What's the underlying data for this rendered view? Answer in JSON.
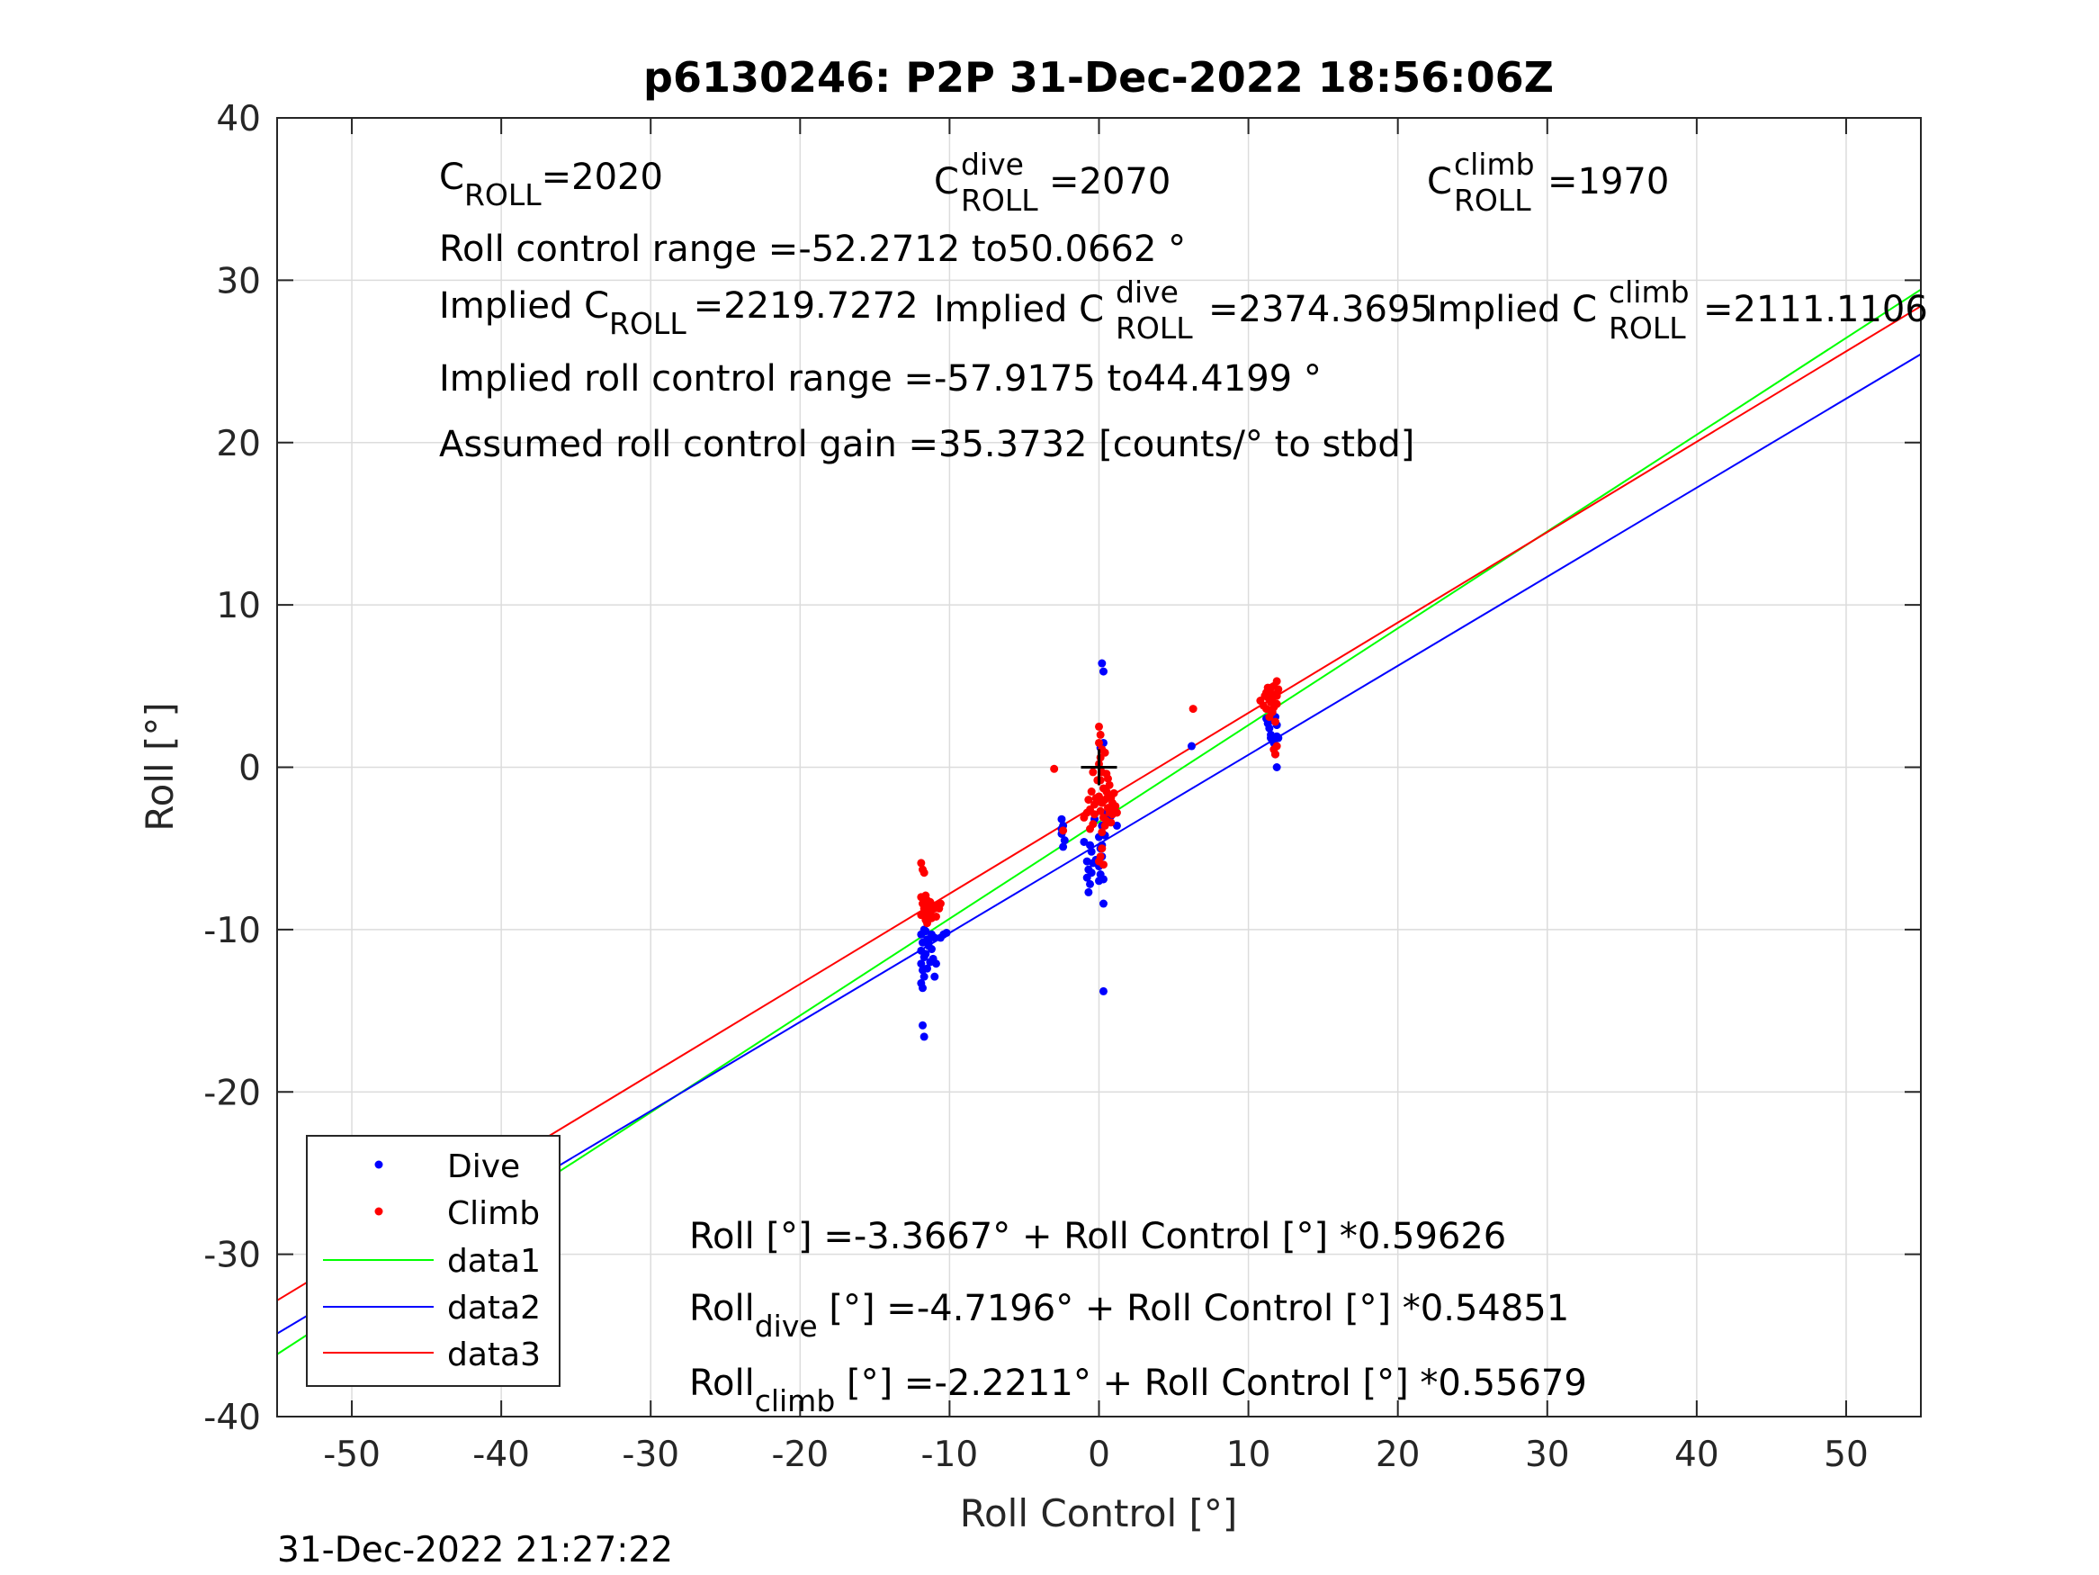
{
  "chart_data": {
    "type": "scatter",
    "title": "p6130246: P2P 31-Dec-2022 18:56:06Z",
    "xlabel": "Roll Control [°]",
    "ylabel": "Roll [°]",
    "xlim": [
      -55,
      55
    ],
    "ylim": [
      -40,
      40
    ],
    "xticks": [
      "-50",
      "-40",
      "-30",
      "-20",
      "-10",
      "0",
      "10",
      "20",
      "30",
      "40",
      "50"
    ],
    "yticks": [
      "40",
      "30",
      "20",
      "10",
      "0",
      "-10",
      "-20",
      "-30",
      "-40"
    ],
    "xtick_values": [
      -50,
      -40,
      -30,
      -20,
      -10,
      0,
      10,
      20,
      30,
      40,
      50
    ],
    "ytick_values": [
      40,
      30,
      20,
      10,
      0,
      -10,
      -20,
      -30,
      -40
    ],
    "grid": true,
    "legend_position": "bottom-left",
    "legend": [
      "Dive",
      "Climb",
      "data1",
      "data2",
      "data3"
    ],
    "timestamp": "31-Dec-2022 21:27:22",
    "colors": {
      "dive": "#0000ff",
      "climb": "#ff0000",
      "data1": "#00ff00",
      "data2": "#0000ff",
      "data3": "#ff0000",
      "marker": "#000000"
    },
    "annotations": {
      "c_roll_base": "C",
      "c_roll_sub": "ROLL",
      "c_roll_val": "=2020",
      "c_dive_base": "C",
      "c_dive_sup": "dive",
      "c_dive_sub": "ROLL",
      "c_dive_val": "=2070",
      "c_climb_base": "C",
      "c_climb_sup": "climb",
      "c_climb_sub": "ROLL",
      "c_climb_val": "=1970",
      "range": "Roll control range =-52.2712 to50.0662 °",
      "implied_base": "Implied C",
      "implied_sub": "ROLL",
      "implied_val": "=2219.7272",
      "implied_dive_base": "Implied C",
      "implied_dive_sup": "dive",
      "implied_dive_sub": "ROLL",
      "implied_dive_val": "=2374.3695",
      "implied_climb_base": "Implied C",
      "implied_climb_sup": "climb",
      "implied_climb_sub": "ROLL",
      "implied_climb_val": "=2111.1106",
      "implied_range": "Implied roll control range =-57.9175 to44.4199 °",
      "gain": "Assumed roll control gain =35.3732 [counts/° to stbd]",
      "fit_all": "Roll [°] =-3.3667° + Roll Control [°] *0.59626",
      "fit_dive_base": "Roll",
      "fit_dive_sub": "dive",
      "fit_dive_rest": " [°] =-4.7196° + Roll Control [°] *0.54851",
      "fit_climb_base": "Roll",
      "fit_climb_sub": "climb",
      "fit_climb_rest": " [°] =-2.2211° + Roll Control [°] *0.55679"
    },
    "lines": [
      {
        "name": "data1",
        "intercept": -3.3667,
        "slope": 0.59626
      },
      {
        "name": "data2",
        "intercept": -4.7196,
        "slope": 0.54851
      },
      {
        "name": "data3",
        "intercept": -2.2211,
        "slope": 0.55679
      }
    ],
    "center_marker": {
      "x": 0,
      "y": 0
    },
    "series": [
      {
        "name": "Dive",
        "points": [
          [
            -11.9,
            -10.3
          ],
          [
            -11.8,
            -10.8
          ],
          [
            -11.9,
            -11.3
          ],
          [
            -11.7,
            -11.7
          ],
          [
            -11.9,
            -12.1
          ],
          [
            -11.8,
            -12.5
          ],
          [
            -11.7,
            -12.9
          ],
          [
            -11.9,
            -13.3
          ],
          [
            -11.8,
            -13.6
          ],
          [
            -11.6,
            -10.1
          ],
          [
            -11.5,
            -10.6
          ],
          [
            -11.4,
            -11.0
          ],
          [
            -11.6,
            -11.5
          ],
          [
            -11.3,
            -12.0
          ],
          [
            -11.5,
            -12.4
          ],
          [
            -11.2,
            -10.3
          ],
          [
            -11.0,
            -10.5
          ],
          [
            -11.2,
            -11.2
          ],
          [
            -10.9,
            -12.1
          ],
          [
            -10.6,
            -10.5
          ],
          [
            -10.4,
            -10.3
          ],
          [
            -10.2,
            -10.2
          ],
          [
            -11.8,
            -15.9
          ],
          [
            -11.7,
            -16.6
          ],
          [
            -11.5,
            -9.4
          ],
          [
            -11.3,
            -9.2
          ],
          [
            -11.0,
            -12.9
          ],
          [
            -11.1,
            -11.8
          ],
          [
            -11.7,
            -10.0
          ],
          [
            -11.4,
            -10.8
          ],
          [
            -2.5,
            -3.2
          ],
          [
            -2.4,
            -3.6
          ],
          [
            -2.5,
            -4.1
          ],
          [
            -2.3,
            -4.5
          ],
          [
            -2.4,
            -4.9
          ],
          [
            -2.5,
            -3.8
          ],
          [
            -1.0,
            -4.6
          ],
          [
            -0.8,
            -5.8
          ],
          [
            -0.7,
            -6.3
          ],
          [
            -0.8,
            -6.8
          ],
          [
            -0.6,
            -7.2
          ],
          [
            -0.7,
            -7.7
          ],
          [
            -0.5,
            -6.5
          ],
          [
            -0.4,
            -5.9
          ],
          [
            -0.6,
            -4.8
          ],
          [
            -0.3,
            -3.2
          ],
          [
            -0.5,
            -5.2
          ],
          [
            -0.2,
            -5.7
          ],
          [
            0.0,
            -4.3
          ],
          [
            0.1,
            -5.0
          ],
          [
            0.0,
            -6.1
          ],
          [
            0.2,
            -5.5
          ],
          [
            0.1,
            -6.6
          ],
          [
            0.3,
            -6.9
          ],
          [
            0.0,
            -7.0
          ],
          [
            0.2,
            -4.8
          ],
          [
            0.3,
            -8.4
          ],
          [
            0.3,
            -13.8
          ],
          [
            0.2,
            6.4
          ],
          [
            0.3,
            5.9
          ],
          [
            0.1,
            1.2
          ],
          [
            0.3,
            1.5
          ],
          [
            0.2,
            -3.6
          ],
          [
            0.4,
            -4.2
          ],
          [
            1.2,
            -3.6
          ],
          [
            0.8,
            -3.0
          ],
          [
            0.5,
            -2.8
          ],
          [
            6.2,
            1.3
          ],
          [
            11.2,
            3.0
          ],
          [
            11.4,
            2.4
          ],
          [
            11.5,
            2.0
          ],
          [
            11.7,
            1.5
          ],
          [
            11.8,
            0.8
          ],
          [
            11.6,
            3.4
          ],
          [
            11.9,
            2.6
          ],
          [
            11.9,
            0.0
          ],
          [
            11.5,
            1.8
          ],
          [
            11.8,
            3.1
          ],
          [
            11.3,
            2.7
          ],
          [
            12.0,
            1.8
          ],
          [
            11.9,
            1.9
          ],
          [
            11.6,
            2.9
          ]
        ]
      },
      {
        "name": "Climb",
        "points": [
          [
            -11.9,
            -5.9
          ],
          [
            -11.8,
            -6.3
          ],
          [
            -11.7,
            -6.5
          ],
          [
            -11.9,
            -8.0
          ],
          [
            -11.8,
            -8.4
          ],
          [
            -11.7,
            -8.7
          ],
          [
            -11.9,
            -9.1
          ],
          [
            -11.6,
            -9.4
          ],
          [
            -11.5,
            -8.2
          ],
          [
            -11.4,
            -8.6
          ],
          [
            -11.3,
            -9.0
          ],
          [
            -11.5,
            -9.6
          ],
          [
            -11.2,
            -8.8
          ],
          [
            -11.0,
            -8.7
          ],
          [
            -10.8,
            -8.5
          ],
          [
            -10.6,
            -8.4
          ],
          [
            -10.9,
            -9.2
          ],
          [
            -11.6,
            -7.9
          ],
          [
            -11.2,
            -9.3
          ],
          [
            -11.7,
            -9.0
          ],
          [
            -11.3,
            -8.3
          ],
          [
            -11.6,
            -8.8
          ],
          [
            -11.4,
            -9.2
          ],
          [
            -11.1,
            -8.5
          ],
          [
            -10.7,
            -8.7
          ],
          [
            -3.0,
            -0.1
          ],
          [
            -2.4,
            -3.9
          ],
          [
            -1.0,
            -3.1
          ],
          [
            -0.8,
            -2.8
          ],
          [
            -0.6,
            -2.6
          ],
          [
            -0.7,
            -2.0
          ],
          [
            -0.5,
            -1.5
          ],
          [
            -0.4,
            -3.5
          ],
          [
            -0.6,
            -3.8
          ],
          [
            -0.3,
            -2.3
          ],
          [
            -0.2,
            -1.9
          ],
          [
            -0.4,
            -0.3
          ],
          [
            -0.1,
            -2.0
          ],
          [
            -0.3,
            -2.9
          ],
          [
            -0.1,
            -0.8
          ],
          [
            0.0,
            2.5
          ],
          [
            0.1,
            2.0
          ],
          [
            0.0,
            1.5
          ],
          [
            0.2,
            1.1
          ],
          [
            0.1,
            0.6
          ],
          [
            0.0,
            0.2
          ],
          [
            0.2,
            -0.3
          ],
          [
            0.1,
            -0.8
          ],
          [
            0.3,
            -1.3
          ],
          [
            0.0,
            -1.8
          ],
          [
            0.2,
            -2.2
          ],
          [
            0.1,
            -2.7
          ],
          [
            0.3,
            -3.1
          ],
          [
            0.4,
            -3.6
          ],
          [
            0.2,
            -4.0
          ],
          [
            0.4,
            -2.0
          ],
          [
            0.5,
            -1.5
          ],
          [
            0.6,
            -2.5
          ],
          [
            0.5,
            -3.3
          ],
          [
            0.7,
            -2.8
          ],
          [
            0.8,
            -1.9
          ],
          [
            0.9,
            -2.2
          ],
          [
            1.0,
            -1.6
          ],
          [
            1.1,
            -2.4
          ],
          [
            1.2,
            -2.8
          ],
          [
            0.6,
            -0.7
          ],
          [
            0.4,
            0.9
          ],
          [
            0.2,
            -5.0
          ],
          [
            0.1,
            -5.5
          ],
          [
            0.3,
            -6.0
          ],
          [
            0.0,
            -5.8
          ],
          [
            0.8,
            -3.4
          ],
          [
            0.7,
            -1.1
          ],
          [
            0.9,
            -2.9
          ],
          [
            0.5,
            -0.4
          ],
          [
            1.0,
            -2.7
          ],
          [
            0.6,
            -1.8
          ],
          [
            6.3,
            3.6
          ],
          [
            10.8,
            4.1
          ],
          [
            11.0,
            3.8
          ],
          [
            11.1,
            4.4
          ],
          [
            11.2,
            3.6
          ],
          [
            11.3,
            4.3
          ],
          [
            11.4,
            4.7
          ],
          [
            11.5,
            4.0
          ],
          [
            11.6,
            3.4
          ],
          [
            11.7,
            5.0
          ],
          [
            11.8,
            4.5
          ],
          [
            11.9,
            5.3
          ],
          [
            11.5,
            4.9
          ],
          [
            11.6,
            4.2
          ],
          [
            11.9,
            3.9
          ],
          [
            11.7,
            1.1
          ],
          [
            11.8,
            0.8
          ],
          [
            11.9,
            1.3
          ],
          [
            12.0,
            4.8
          ],
          [
            11.2,
            4.6
          ],
          [
            11.4,
            3.1
          ],
          [
            11.7,
            3.7
          ],
          [
            11.8,
            2.8
          ],
          [
            11.3,
            4.9
          ],
          [
            11.6,
            4.5
          ],
          [
            11.9,
            4.4
          ],
          [
            11.5,
            3.5
          ]
        ]
      }
    ]
  }
}
